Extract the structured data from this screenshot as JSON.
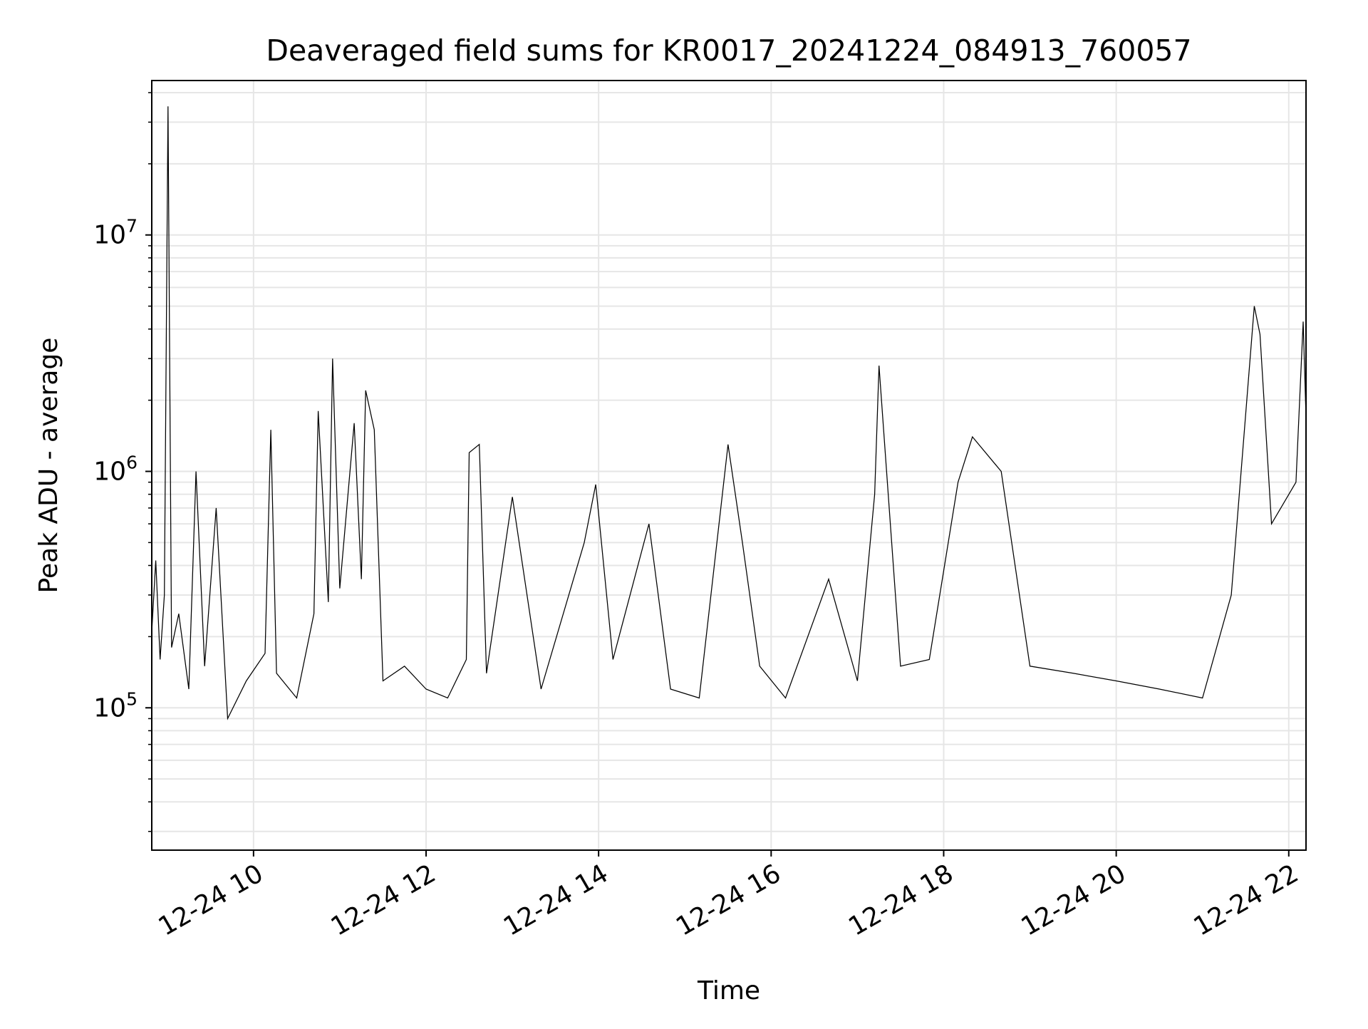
{
  "chart_data": {
    "type": "line",
    "title": "Deaveraged field sums for KR0017_20241224_084913_760057",
    "xlabel": "Time",
    "ylabel": "Peak ADU - average",
    "x_axis": {
      "kind": "time",
      "range": [
        "2024-12-24T08:49:13",
        "2024-12-24T22:12:00"
      ],
      "tick_labels": [
        "12-24 10",
        "12-24 12",
        "12-24 14",
        "12-24 16",
        "12-24 18",
        "12-24 20",
        "12-24 22"
      ],
      "tick_times": [
        "2024-12-24T10:00:00",
        "2024-12-24T12:00:00",
        "2024-12-24T14:00:00",
        "2024-12-24T16:00:00",
        "2024-12-24T18:00:00",
        "2024-12-24T20:00:00",
        "2024-12-24T22:00:00"
      ]
    },
    "y_axis": {
      "scale": "log",
      "range": [
        25000,
        45000000
      ],
      "major_ticks": [
        100000,
        1000000,
        10000000
      ],
      "tick_labels": [
        {
          "base": "10",
          "exp": "5"
        },
        {
          "base": "10",
          "exp": "6"
        },
        {
          "base": "10",
          "exp": "7"
        }
      ]
    },
    "grid": true,
    "line_color": "#000000",
    "grid_color": "#e6e6e6",
    "series": [
      {
        "values": [
          [
            "2024-12-24T08:49:13",
            210000
          ],
          [
            "2024-12-24T08:52:00",
            420000
          ],
          [
            "2024-12-24T08:55:00",
            160000
          ],
          [
            "2024-12-24T08:58:00",
            300000
          ],
          [
            "2024-12-24T09:00:30",
            35000000
          ],
          [
            "2024-12-24T09:03:00",
            180000
          ],
          [
            "2024-12-24T09:08:00",
            250000
          ],
          [
            "2024-12-24T09:15:00",
            120000
          ],
          [
            "2024-12-24T09:20:00",
            1000000
          ],
          [
            "2024-12-24T09:26:00",
            150000
          ],
          [
            "2024-12-24T09:34:00",
            700000
          ],
          [
            "2024-12-24T09:42:00",
            90000
          ],
          [
            "2024-12-24T09:55:00",
            130000
          ],
          [
            "2024-12-24T10:08:00",
            170000
          ],
          [
            "2024-12-24T10:12:00",
            1500000
          ],
          [
            "2024-12-24T10:16:00",
            140000
          ],
          [
            "2024-12-24T10:30:00",
            110000
          ],
          [
            "2024-12-24T10:42:00",
            250000
          ],
          [
            "2024-12-24T10:45:00",
            1800000
          ],
          [
            "2024-12-24T10:52:00",
            280000
          ],
          [
            "2024-12-24T10:55:00",
            3000000
          ],
          [
            "2024-12-24T11:00:00",
            320000
          ],
          [
            "2024-12-24T11:10:00",
            1600000
          ],
          [
            "2024-12-24T11:15:00",
            350000
          ],
          [
            "2024-12-24T11:18:00",
            2200000
          ],
          [
            "2024-12-24T11:24:00",
            1500000
          ],
          [
            "2024-12-24T11:30:00",
            130000
          ],
          [
            "2024-12-24T11:45:00",
            150000
          ],
          [
            "2024-12-24T12:00:00",
            120000
          ],
          [
            "2024-12-24T12:15:00",
            110000
          ],
          [
            "2024-12-24T12:28:00",
            160000
          ],
          [
            "2024-12-24T12:30:00",
            1200000
          ],
          [
            "2024-12-24T12:37:00",
            1300000
          ],
          [
            "2024-12-24T12:42:00",
            140000
          ],
          [
            "2024-12-24T13:00:00",
            780000
          ],
          [
            "2024-12-24T13:20:00",
            120000
          ],
          [
            "2024-12-24T13:50:00",
            500000
          ],
          [
            "2024-12-24T13:58:00",
            880000
          ],
          [
            "2024-12-24T14:10:00",
            160000
          ],
          [
            "2024-12-24T14:35:00",
            600000
          ],
          [
            "2024-12-24T14:50:00",
            120000
          ],
          [
            "2024-12-24T15:10:00",
            110000
          ],
          [
            "2024-12-24T15:30:00",
            1300000
          ],
          [
            "2024-12-24T15:40:00",
            500000
          ],
          [
            "2024-12-24T15:52:00",
            150000
          ],
          [
            "2024-12-24T16:10:00",
            110000
          ],
          [
            "2024-12-24T16:40:00",
            350000
          ],
          [
            "2024-12-24T17:00:00",
            130000
          ],
          [
            "2024-12-24T17:12:00",
            800000
          ],
          [
            "2024-12-24T17:15:00",
            2800000
          ],
          [
            "2024-12-24T17:30:00",
            150000
          ],
          [
            "2024-12-24T17:50:00",
            160000
          ],
          [
            "2024-12-24T18:10:00",
            900000
          ],
          [
            "2024-12-24T18:20:00",
            1400000
          ],
          [
            "2024-12-24T18:40:00",
            1000000
          ],
          [
            "2024-12-24T19:00:00",
            150000
          ],
          [
            "2024-12-24T19:30:00",
            140000
          ],
          [
            "2024-12-24T20:00:00",
            130000
          ],
          [
            "2024-12-24T20:30:00",
            120000
          ],
          [
            "2024-12-24T21:00:00",
            110000
          ],
          [
            "2024-12-24T21:20:00",
            300000
          ],
          [
            "2024-12-24T21:36:00",
            5000000
          ],
          [
            "2024-12-24T21:40:00",
            3800000
          ],
          [
            "2024-12-24T21:48:00",
            600000
          ],
          [
            "2024-12-24T22:05:00",
            900000
          ],
          [
            "2024-12-24T22:10:00",
            4300000
          ],
          [
            "2024-12-24T22:12:00",
            1700000
          ]
        ]
      }
    ]
  }
}
